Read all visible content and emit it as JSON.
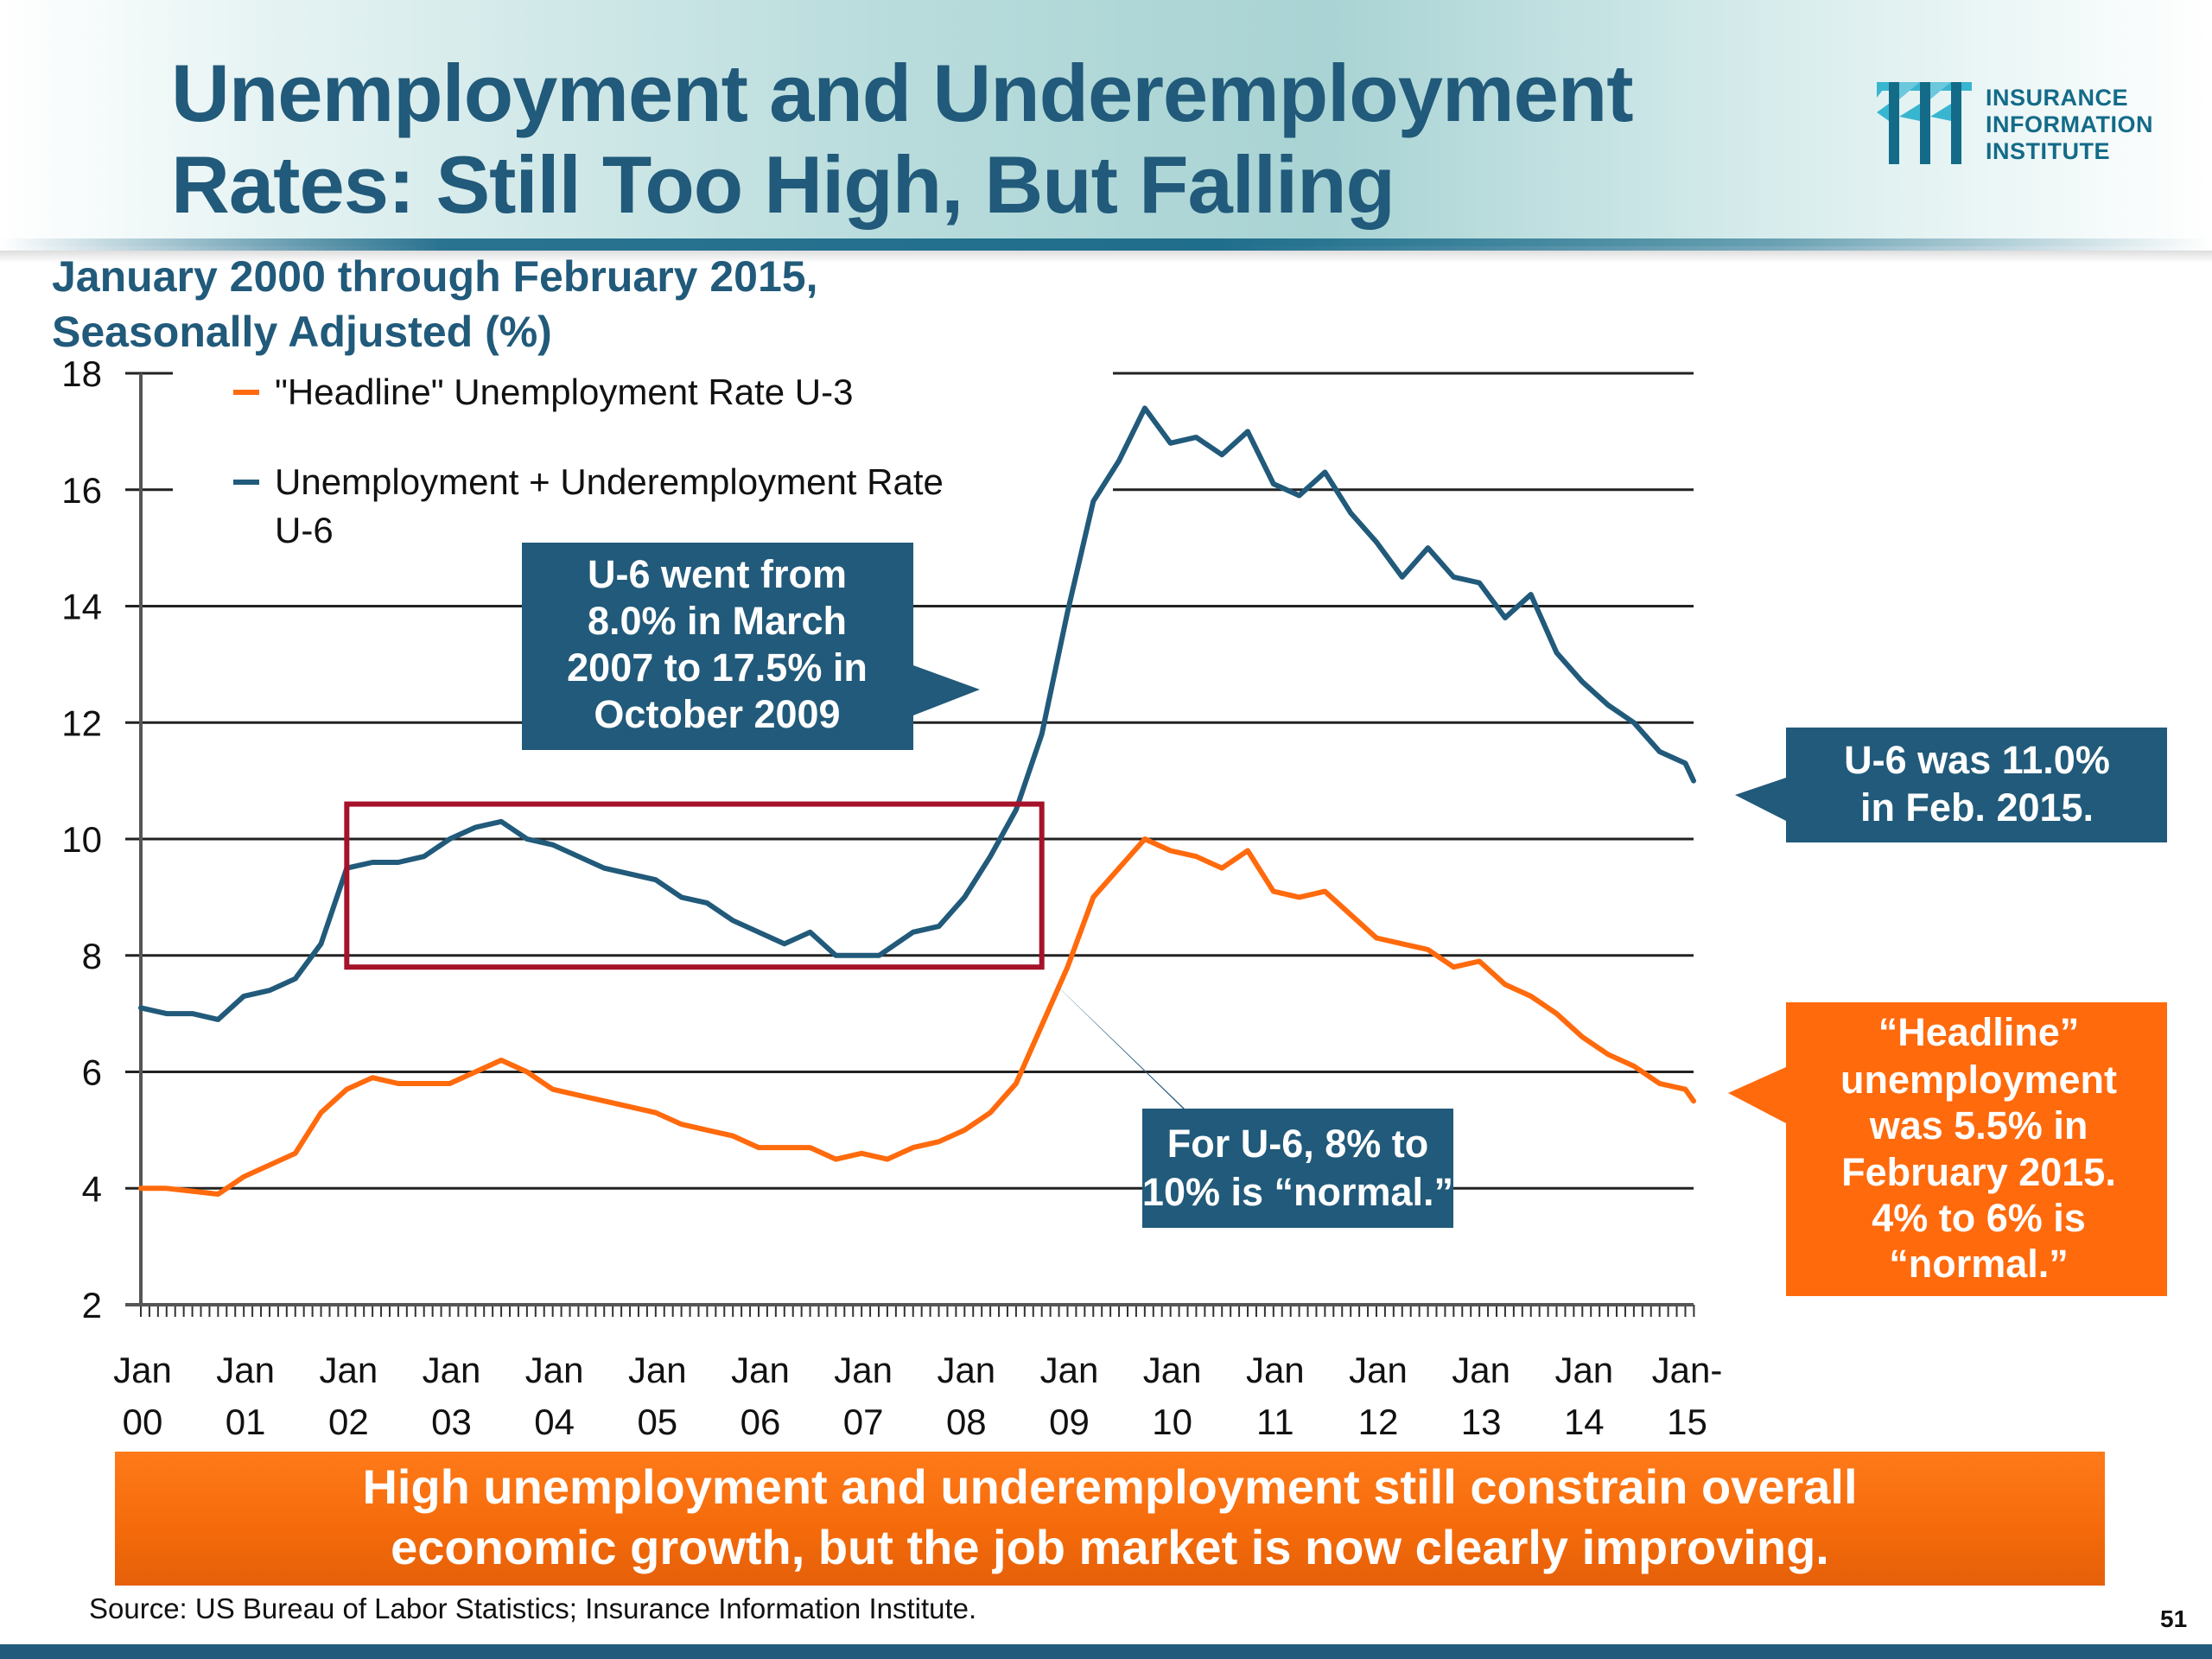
{
  "header": {
    "title_line1": "Unemployment and Underemployment",
    "title_line2": "Rates: Still Too High, But Falling",
    "logo_icon": "iii-logo-icon",
    "logo_line1": "INSURANCE",
    "logo_line2": "INFORMATION",
    "logo_line3": "INSTITUTE"
  },
  "subtitle_line1": "January 2000 through February 2015,",
  "subtitle_line2": "Seasonally Adjusted (%)",
  "colors": {
    "u3": "#ff6a0d",
    "u6": "#215a7a",
    "highlight_box": "#a5122a",
    "callout_blue": "#215a7a",
    "callout_orange": "#ff6a0d",
    "title": "#215a7a"
  },
  "callouts": {
    "u6_range": [
      "U-6 went from",
      "8.0% in March",
      "2007 to 17.5% in",
      "October 2009"
    ],
    "u6_normal": [
      "For U-6, 8% to",
      "10% is “normal.”"
    ],
    "u6_latest": [
      "U-6 was 11.0%",
      "in Feb. 2015."
    ],
    "u3_latest": [
      "“Headline”",
      "unemployment",
      "was 5.5% in",
      "February 2015.",
      "4% to 6% is",
      "“normal.”"
    ]
  },
  "banner": {
    "line1": "High unemployment and underemployment still constrain overall",
    "line2": "economic growth, but the job market is now clearly improving."
  },
  "source": "Source: US Bureau of Labor Statistics; Insurance Information Institute.",
  "page_number": "51",
  "chart_data": {
    "type": "line",
    "title": "Unemployment and Underemployment Rates: Still Too High, But Falling",
    "subtitle": "January 2000 through February 2015, Seasonally Adjusted (%)",
    "xlabel": "",
    "ylabel": "",
    "ylim": [
      2,
      18
    ],
    "yticks": [
      2,
      4,
      6,
      8,
      10,
      12,
      14,
      16,
      18
    ],
    "x_range": [
      "Jan 2000",
      "Feb 2015"
    ],
    "xtick_labels": [
      [
        "Jan",
        "00"
      ],
      [
        "Jan",
        "01"
      ],
      [
        "Jan",
        "02"
      ],
      [
        "Jan",
        "03"
      ],
      [
        "Jan",
        "04"
      ],
      [
        "Jan",
        "05"
      ],
      [
        "Jan",
        "06"
      ],
      [
        "Jan",
        "07"
      ],
      [
        "Jan",
        "08"
      ],
      [
        "Jan",
        "09"
      ],
      [
        "Jan",
        "10"
      ],
      [
        "Jan",
        "11"
      ],
      [
        "Jan",
        "12"
      ],
      [
        "Jan",
        "13"
      ],
      [
        "Jan",
        "14"
      ],
      [
        "Jan-",
        "15"
      ]
    ],
    "grid": true,
    "legend_position": "top-left",
    "x_units": "years since Jan 2000",
    "series": [
      {
        "name": "\"Headline\" Unemployment Rate U-3",
        "color_key": "u3",
        "points": [
          [
            0.0,
            4.0
          ],
          [
            0.25,
            4.0
          ],
          [
            0.5,
            3.95
          ],
          [
            0.75,
            3.9
          ],
          [
            1.0,
            4.2
          ],
          [
            1.25,
            4.4
          ],
          [
            1.5,
            4.6
          ],
          [
            1.75,
            5.3
          ],
          [
            2.0,
            5.7
          ],
          [
            2.25,
            5.9
          ],
          [
            2.5,
            5.8
          ],
          [
            2.75,
            5.8
          ],
          [
            3.0,
            5.8
          ],
          [
            3.25,
            6.0
          ],
          [
            3.5,
            6.2
          ],
          [
            3.75,
            6.0
          ],
          [
            4.0,
            5.7
          ],
          [
            4.25,
            5.6
          ],
          [
            4.5,
            5.5
          ],
          [
            4.75,
            5.4
          ],
          [
            5.0,
            5.3
          ],
          [
            5.25,
            5.1
          ],
          [
            5.5,
            5.0
          ],
          [
            5.75,
            4.9
          ],
          [
            6.0,
            4.7
          ],
          [
            6.25,
            4.7
          ],
          [
            6.5,
            4.7
          ],
          [
            6.75,
            4.5
          ],
          [
            7.0,
            4.6
          ],
          [
            7.25,
            4.5
          ],
          [
            7.5,
            4.7
          ],
          [
            7.75,
            4.8
          ],
          [
            8.0,
            5.0
          ],
          [
            8.25,
            5.3
          ],
          [
            8.5,
            5.8
          ],
          [
            8.75,
            6.8
          ],
          [
            9.0,
            7.8
          ],
          [
            9.25,
            9.0
          ],
          [
            9.5,
            9.5
          ],
          [
            9.75,
            10.0
          ],
          [
            10.0,
            9.8
          ],
          [
            10.25,
            9.7
          ],
          [
            10.5,
            9.5
          ],
          [
            10.75,
            9.8
          ],
          [
            11.0,
            9.1
          ],
          [
            11.25,
            9.0
          ],
          [
            11.5,
            9.1
          ],
          [
            11.75,
            8.7
          ],
          [
            12.0,
            8.3
          ],
          [
            12.25,
            8.2
          ],
          [
            12.5,
            8.1
          ],
          [
            12.75,
            7.8
          ],
          [
            13.0,
            7.9
          ],
          [
            13.25,
            7.5
          ],
          [
            13.5,
            7.3
          ],
          [
            13.75,
            7.0
          ],
          [
            14.0,
            6.6
          ],
          [
            14.25,
            6.3
          ],
          [
            14.5,
            6.1
          ],
          [
            14.75,
            5.8
          ],
          [
            15.0,
            5.7
          ],
          [
            15.08,
            5.5
          ]
        ]
      },
      {
        "name": "Unemployment + Underemployment Rate U-6",
        "color_key": "u6",
        "points": [
          [
            0.0,
            7.1
          ],
          [
            0.25,
            7.0
          ],
          [
            0.5,
            7.0
          ],
          [
            0.75,
            6.9
          ],
          [
            1.0,
            7.3
          ],
          [
            1.25,
            7.4
          ],
          [
            1.5,
            7.6
          ],
          [
            1.75,
            8.2
          ],
          [
            2.0,
            9.5
          ],
          [
            2.25,
            9.6
          ],
          [
            2.5,
            9.6
          ],
          [
            2.75,
            9.7
          ],
          [
            3.0,
            10.0
          ],
          [
            3.25,
            10.2
          ],
          [
            3.5,
            10.3
          ],
          [
            3.75,
            10.0
          ],
          [
            4.0,
            9.9
          ],
          [
            4.25,
            9.7
          ],
          [
            4.5,
            9.5
          ],
          [
            4.75,
            9.4
          ],
          [
            5.0,
            9.3
          ],
          [
            5.25,
            9.0
          ],
          [
            5.5,
            8.9
          ],
          [
            5.75,
            8.6
          ],
          [
            6.0,
            8.4
          ],
          [
            6.25,
            8.2
          ],
          [
            6.5,
            8.4
          ],
          [
            6.75,
            8.0
          ],
          [
            7.0,
            8.0
          ],
          [
            7.17,
            8.0
          ],
          [
            7.5,
            8.4
          ],
          [
            7.75,
            8.5
          ],
          [
            8.0,
            9.0
          ],
          [
            8.25,
            9.7
          ],
          [
            8.5,
            10.5
          ],
          [
            8.75,
            11.8
          ],
          [
            9.0,
            13.9
          ],
          [
            9.25,
            15.8
          ],
          [
            9.5,
            16.5
          ],
          [
            9.75,
            17.4
          ],
          [
            10.0,
            16.8
          ],
          [
            10.25,
            16.9
          ],
          [
            10.5,
            16.6
          ],
          [
            10.75,
            17.0
          ],
          [
            11.0,
            16.1
          ],
          [
            11.25,
            15.9
          ],
          [
            11.5,
            16.3
          ],
          [
            11.75,
            15.6
          ],
          [
            12.0,
            15.1
          ],
          [
            12.25,
            14.5
          ],
          [
            12.5,
            15.0
          ],
          [
            12.75,
            14.5
          ],
          [
            13.0,
            14.4
          ],
          [
            13.25,
            13.8
          ],
          [
            13.5,
            14.2
          ],
          [
            13.75,
            13.2
          ],
          [
            14.0,
            12.7
          ],
          [
            14.25,
            12.3
          ],
          [
            14.5,
            12.0
          ],
          [
            14.75,
            11.5
          ],
          [
            15.0,
            11.3
          ],
          [
            15.08,
            11.0
          ]
        ]
      }
    ],
    "annotations": [
      {
        "type": "box",
        "label": "U-6 normal range",
        "y_range": [
          7.8,
          10.6
        ],
        "x_range": [
          2.0,
          8.75
        ]
      }
    ]
  }
}
